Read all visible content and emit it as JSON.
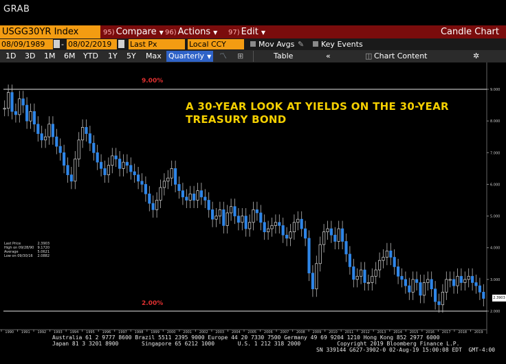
{
  "window": {
    "title": "GRAB"
  },
  "toolbar": {
    "ticker": "USGG30YR Index",
    "compare": {
      "num": "95)",
      "label": "Compare"
    },
    "actions": {
      "num": "96)",
      "label": "Actions"
    },
    "edit": {
      "num": "97)",
      "label": "Edit"
    },
    "chart_type": "Candle Chart"
  },
  "settings": {
    "start_date": "08/09/1989",
    "end_date": "08/02/2019",
    "price_field": "Last Px",
    "currency": "Local CCY",
    "mov_avgs": "Mov Avgs",
    "key_events": "Key Events"
  },
  "ranges": {
    "items": [
      "1D",
      "3D",
      "1M",
      "6M",
      "YTD",
      "1Y",
      "5Y",
      "Max"
    ],
    "period": "Quarterly",
    "table": "Table",
    "chart_content": "Chart Content"
  },
  "annotation": {
    "line1": "A 30-YEAR LOOK AT YIELDS ON THE 30-YEAR",
    "line2": "TREASURY BOND",
    "high_label": "9.00%",
    "low_label": "2.00%"
  },
  "legend": {
    "last_price": {
      "label": "Last Price",
      "value": "2.3903"
    },
    "high": {
      "label": "High on 09/28/90",
      "value": "9.1720"
    },
    "average": {
      "label": "Average",
      "value": "5.0621"
    },
    "low": {
      "label": "Low on 09/30/16",
      "value": "2.0882"
    }
  },
  "last_price_tag": "2.3903",
  "footer": {
    "line1": "Australia 61 2 9777 8600 Brazil 5511 2395 9000 Europe 44 20 7330 7500 Germany 49 69 9204 1210 Hong Kong 852 2977 6000",
    "line2": "Japan 81 3 3201 8900       Singapore 65 6212 1000       U.S. 1 212 318 2000           Copyright 2019 Bloomberg Finance L.P.",
    "line3": "SN 339144 G627-3902-0 02-Aug-19 15:00:08 EDT  GMT-4:00"
  },
  "chart_data": {
    "type": "candlestick",
    "title": "A 30-YEAR LOOK AT YIELDS ON THE 30-YEAR TREASURY BOND",
    "ylim": [
      2.0,
      9.5
    ],
    "y_ticks": [
      "2.000",
      "3.000",
      "4.000",
      "5.000",
      "6.000",
      "7.000",
      "8.000",
      "9.000"
    ],
    "x_ticks": [
      "1990",
      "1991",
      "1992",
      "1993",
      "1994",
      "1995",
      "1996",
      "1997",
      "1998",
      "1999",
      "2000",
      "2001",
      "2002",
      "2003",
      "2004",
      "2005",
      "2006",
      "2007",
      "2008",
      "2009",
      "2010",
      "2011",
      "2012",
      "2013",
      "2014",
      "2015",
      "2016",
      "2017",
      "2018",
      "2019"
    ],
    "reference_lines": [
      9.0,
      2.0
    ],
    "series": [
      {
        "values": [
          8.4,
          8.9,
          8.3,
          8.2,
          8.7,
          8.5,
          8.0,
          8.3,
          7.9,
          7.6,
          7.4,
          7.5,
          7.9,
          7.5,
          7.2,
          7.0,
          6.6,
          6.3,
          6.1,
          6.8,
          7.4,
          7.8,
          7.6,
          7.3,
          7.0,
          6.7,
          6.5,
          6.3,
          6.6,
          6.9,
          6.8,
          6.5,
          6.7,
          6.6,
          6.4,
          6.3,
          6.1,
          6.0,
          5.7,
          5.4,
          5.2,
          5.5,
          5.9,
          6.1,
          6.2,
          6.5,
          6.0,
          5.8,
          5.6,
          5.5,
          5.7,
          5.5,
          5.8,
          5.6,
          5.5,
          5.2,
          4.9,
          5.0,
          5.2,
          4.7,
          5.1,
          5.3,
          5.0,
          4.8,
          5.0,
          4.6,
          4.8,
          5.2,
          5.1,
          4.8,
          4.5,
          4.6,
          4.7,
          4.8,
          4.7,
          4.4,
          4.3,
          4.5,
          4.8,
          4.9,
          4.6,
          4.3,
          3.2,
          2.7,
          3.5,
          4.1,
          4.5,
          4.6,
          4.4,
          4.2,
          4.6,
          4.2,
          3.8,
          3.4,
          3.0,
          3.1,
          3.3,
          2.9,
          2.9,
          3.1,
          3.3,
          3.6,
          3.7,
          3.9,
          3.7,
          3.4,
          3.1,
          3.0,
          2.8,
          2.6,
          3.0,
          2.9,
          2.5,
          2.9,
          3.0,
          2.7,
          2.3,
          2.2,
          2.6,
          3.0,
          3.0,
          2.8,
          3.1,
          2.9,
          3.0,
          3.1,
          2.9,
          2.8,
          2.6,
          2.4
        ]
      }
    ]
  }
}
